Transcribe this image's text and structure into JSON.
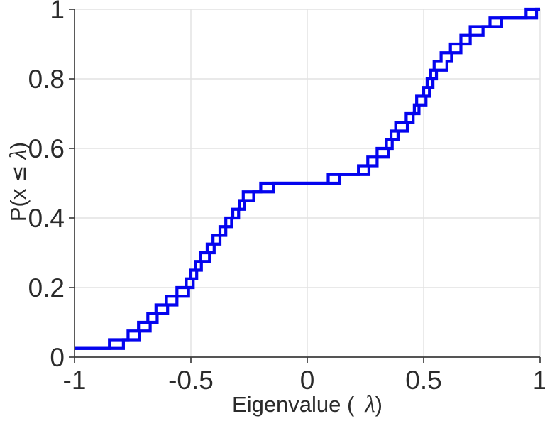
{
  "figure": {
    "background": "#ffffff",
    "axis_color": "#3f3f3f",
    "grid_color": "#e2e2e2",
    "tick_label_color": "#2b2b2b",
    "line_color": "#0404ee"
  },
  "labels": {
    "xlabel_full": "Eigenvalue ( λ)",
    "ylabel_full": "P(x ≤ λ)",
    "xlabel_prefix": "Eigenvalue (",
    "xlabel_symbol": "λ",
    "xlabel_suffix": ")",
    "ylabel_prefix": "P(x ",
    "ylabel_leq": "≤",
    "ylabel_symbol": " λ",
    "ylabel_suffix": ")"
  },
  "chart_data": {
    "type": "line",
    "subtype": "empirical-cdf-staircase",
    "title": "",
    "xlabel": "Eigenvalue ( λ)",
    "ylabel": "P(x ≤ λ)",
    "xlim": [
      -1,
      1
    ],
    "ylim": [
      0,
      1
    ],
    "grid": true,
    "x_ticks": [
      -1,
      -0.5,
      0,
      0.5,
      1
    ],
    "x_tick_labels": [
      "-1",
      "-0.5",
      "0",
      "0.5",
      "1"
    ],
    "y_ticks": [
      0,
      0.2,
      0.4,
      0.6,
      0.8,
      1
    ],
    "y_tick_labels": [
      "0",
      "0.2",
      "0.4",
      "0.6",
      "0.8",
      "1"
    ],
    "n_points_per_series": 40,
    "cdf_step": 0.025,
    "series": [
      {
        "name": "ecdf-curve-1",
        "color": "#0404ee",
        "eigenvalues": [
          -1.0,
          -0.85,
          -0.77,
          -0.725,
          -0.685,
          -0.65,
          -0.605,
          -0.56,
          -0.52,
          -0.5,
          -0.48,
          -0.46,
          -0.43,
          -0.405,
          -0.375,
          -0.35,
          -0.32,
          -0.29,
          -0.275,
          -0.2,
          0.09,
          0.22,
          0.26,
          0.3,
          0.34,
          0.36,
          0.38,
          0.425,
          0.46,
          0.47,
          0.5,
          0.515,
          0.53,
          0.545,
          0.575,
          0.615,
          0.66,
          0.7,
          0.785,
          0.94
        ]
      },
      {
        "name": "ecdf-curve-2",
        "color": "#0404ee",
        "eigenvalues": [
          -1.0,
          -0.79,
          -0.72,
          -0.675,
          -0.645,
          -0.6,
          -0.56,
          -0.51,
          -0.49,
          -0.475,
          -0.455,
          -0.42,
          -0.4,
          -0.375,
          -0.35,
          -0.325,
          -0.295,
          -0.27,
          -0.23,
          -0.145,
          0.14,
          0.265,
          0.3,
          0.35,
          0.365,
          0.39,
          0.43,
          0.455,
          0.48,
          0.51,
          0.525,
          0.54,
          0.555,
          0.6,
          0.62,
          0.66,
          0.7,
          0.755,
          0.835,
          0.985
        ]
      }
    ]
  }
}
